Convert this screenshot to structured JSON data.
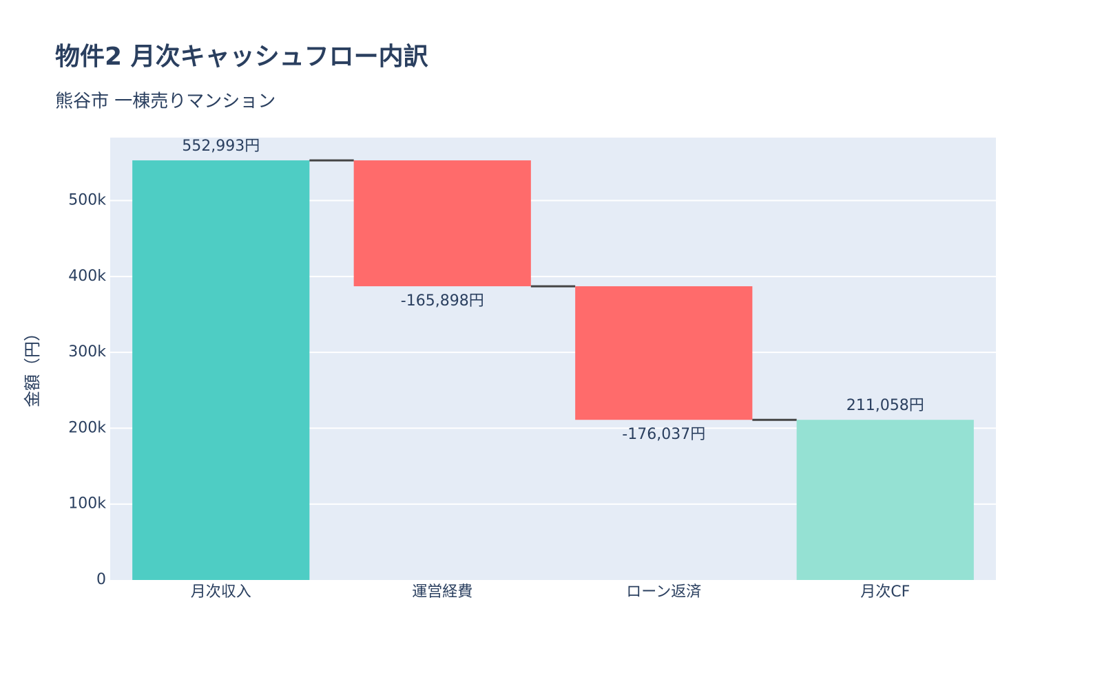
{
  "chart_data": {
    "type": "waterfall",
    "title": "物件2 月次キャッシュフロー内訳",
    "subtitle": "熊谷市 一棟売りマンション",
    "y_axis_title": "金額（円）",
    "categories": [
      "月次収入",
      "運営経費",
      "ローン返済",
      "月次CF"
    ],
    "measure": [
      "relative",
      "relative",
      "relative",
      "total"
    ],
    "values": [
      552993,
      -165898,
      -176037,
      211058
    ],
    "value_labels": [
      "552,993円",
      "-165,898円",
      "-176,037円",
      "211,058円"
    ],
    "colors": {
      "increasing": "#4ecdc4",
      "decreasing": "#ff6b6b",
      "total": "#95e1d3",
      "connector": "#444444"
    },
    "ylim": [
      0,
      583000
    ],
    "yticks": [
      0,
      {
        "value": 100000,
        "label": "100k"
      },
      {
        "value": 200000,
        "label": "200k"
      },
      {
        "value": 300000,
        "label": "300k"
      },
      {
        "value": 400000,
        "label": "400k"
      },
      {
        "value": 500000,
        "label": "500k"
      }
    ],
    "grid": true
  }
}
